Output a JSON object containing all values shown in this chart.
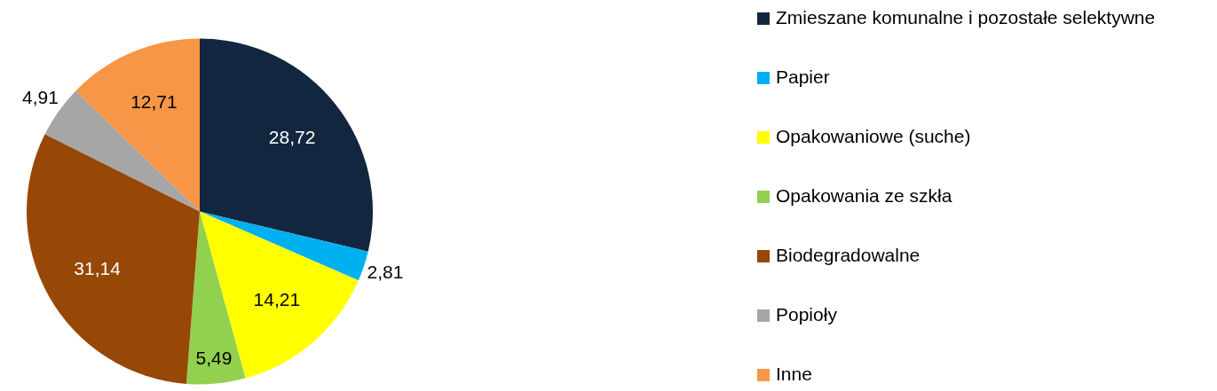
{
  "chart_data": {
    "type": "pie",
    "categories": [
      "Zmieszane komunalne i pozostałe selektywne",
      "Papier",
      "Opakowaniowe (suche)",
      "Opakowania ze szkła",
      "Biodegradowalne",
      "Popioły",
      "Inne"
    ],
    "values": [
      28.72,
      2.81,
      14.21,
      5.49,
      31.14,
      4.91,
      12.71
    ],
    "colors": [
      "#12263f",
      "#00b0f0",
      "#ffff00",
      "#92d050",
      "#974706",
      "#a6a6a6",
      "#f79646"
    ],
    "value_labels": [
      "28,72",
      "2,81",
      "14,21",
      "5,49",
      "31,14",
      "4,91",
      "12,71"
    ],
    "legend": "right"
  }
}
